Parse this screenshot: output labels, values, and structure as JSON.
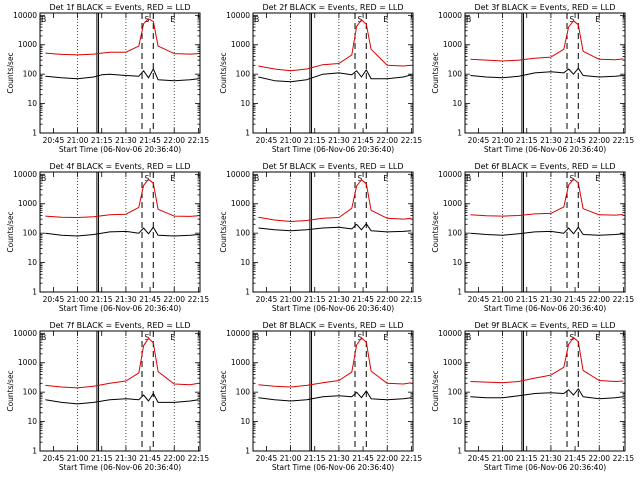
{
  "figure": {
    "background": "#ffffff",
    "events_color": "#000000",
    "lld_color": "#dd0000"
  },
  "chart_data": [
    {
      "type": "line",
      "title": "Det 1f BLACK = Events, RED = LLD",
      "xlabel": "Start Time (06-Nov-06 20:36:40)",
      "ylabel": "Counts/sec",
      "yscale": "log",
      "ylim": [
        1,
        12000
      ],
      "xlim": [
        "20:36:40",
        "22:16:00"
      ],
      "xticks": [
        "20:45",
        "21:00",
        "21:15",
        "21:30",
        "21:45",
        "22:00",
        "22:15"
      ],
      "yticks": [
        "1",
        "10",
        "100",
        "1000",
        "10000"
      ],
      "interval_labels": [
        "B",
        "S",
        "E"
      ],
      "x": [
        "20:40",
        "20:50",
        "21:00",
        "21:10",
        "21:15",
        "21:20",
        "21:30",
        "21:38",
        "21:41",
        "21:44",
        "21:47",
        "21:50",
        "22:00",
        "22:10",
        "22:15"
      ],
      "series": [
        {
          "name": "BLACK = Events",
          "values": [
            85,
            75,
            70,
            80,
            95,
            100,
            90,
            85,
            130,
            75,
            150,
            65,
            60,
            65,
            70
          ]
        },
        {
          "name": "RED = LLD",
          "values": [
            520,
            470,
            450,
            480,
            520,
            560,
            560,
            900,
            5200,
            7600,
            6200,
            900,
            500,
            480,
            500
          ]
        }
      ]
    },
    {
      "type": "line",
      "title": "Det 2f BLACK = Events, RED = LLD",
      "xlabel": "Start Time (06-Nov-06 20:36:40)",
      "ylabel": "Counts/sec",
      "yscale": "log",
      "ylim": [
        1,
        12000
      ],
      "xlim": [
        "20:36:40",
        "22:16:00"
      ],
      "xticks": [
        "20:45",
        "21:00",
        "21:15",
        "21:30",
        "21:45",
        "22:00",
        "22:15"
      ],
      "yticks": [
        "1",
        "10",
        "100",
        "1000",
        "10000"
      ],
      "interval_labels": [
        "B",
        "S",
        "E"
      ],
      "x": [
        "20:40",
        "20:50",
        "21:00",
        "21:10",
        "21:20",
        "21:30",
        "21:38",
        "21:41",
        "21:44",
        "21:47",
        "21:50",
        "22:00",
        "22:10",
        "22:15"
      ],
      "series": [
        {
          "name": "BLACK = Events",
          "values": [
            80,
            60,
            55,
            65,
            100,
            110,
            95,
            130,
            80,
            140,
            70,
            70,
            80,
            95
          ]
        },
        {
          "name": "RED = LLD",
          "values": [
            190,
            150,
            130,
            150,
            210,
            230,
            450,
            4200,
            7000,
            5000,
            700,
            200,
            190,
            200
          ]
        }
      ]
    },
    {
      "type": "line",
      "title": "Det 3f BLACK = Events, RED = LLD",
      "xlabel": "Start Time (06-Nov-06 20:36:40)",
      "ylabel": "Counts/sec",
      "yscale": "log",
      "ylim": [
        1,
        12000
      ],
      "xlim": [
        "20:36:40",
        "22:16:00"
      ],
      "xticks": [
        "20:45",
        "21:00",
        "21:15",
        "21:30",
        "21:45",
        "22:00",
        "22:15"
      ],
      "yticks": [
        "1",
        "10",
        "100",
        "1000",
        "10000"
      ],
      "interval_labels": [
        "B",
        "S",
        "E"
      ],
      "x": [
        "20:40",
        "20:50",
        "21:00",
        "21:10",
        "21:20",
        "21:30",
        "21:38",
        "21:41",
        "21:44",
        "21:47",
        "21:50",
        "22:00",
        "22:10",
        "22:15"
      ],
      "series": [
        {
          "name": "BLACK = Events",
          "values": [
            90,
            80,
            75,
            85,
            110,
            120,
            110,
            150,
            100,
            160,
            90,
            80,
            85,
            90
          ]
        },
        {
          "name": "RED = LLD",
          "values": [
            320,
            300,
            280,
            300,
            350,
            380,
            700,
            4000,
            6500,
            4800,
            600,
            320,
            310,
            330
          ]
        }
      ]
    },
    {
      "type": "line",
      "title": "Det 4f BLACK = Events, RED = LLD",
      "xlabel": "Start Time (06-Nov-06 20:36:40)",
      "ylabel": "Counts/sec",
      "yscale": "log",
      "ylim": [
        1,
        12000
      ],
      "xlim": [
        "20:36:40",
        "22:16:00"
      ],
      "xticks": [
        "20:45",
        "21:00",
        "21:15",
        "21:30",
        "21:45",
        "22:00",
        "22:15"
      ],
      "yticks": [
        "1",
        "10",
        "100",
        "1000",
        "10000"
      ],
      "interval_labels": [
        "B",
        "S",
        "E"
      ],
      "x": [
        "20:40",
        "20:50",
        "21:00",
        "21:10",
        "21:20",
        "21:30",
        "21:38",
        "21:41",
        "21:44",
        "21:47",
        "21:50",
        "22:00",
        "22:10",
        "22:15"
      ],
      "series": [
        {
          "name": "BLACK = Events",
          "values": [
            100,
            85,
            80,
            90,
            110,
            115,
            100,
            150,
            95,
            160,
            85,
            80,
            85,
            90
          ]
        },
        {
          "name": "RED = LLD",
          "values": [
            380,
            350,
            340,
            360,
            420,
            440,
            750,
            4200,
            6800,
            5000,
            650,
            380,
            370,
            390
          ]
        }
      ]
    },
    {
      "type": "line",
      "title": "Det 5f BLACK = Events, RED = LLD",
      "xlabel": "Start Time (06-Nov-06 20:36:40)",
      "ylabel": "Counts/sec",
      "yscale": "log",
      "ylim": [
        1,
        12000
      ],
      "xlim": [
        "20:36:40",
        "22:16:00"
      ],
      "xticks": [
        "20:45",
        "21:00",
        "21:15",
        "21:30",
        "21:45",
        "22:00",
        "22:15"
      ],
      "yticks": [
        "1",
        "10",
        "100",
        "1000",
        "10000"
      ],
      "interval_labels": [
        "B",
        "S",
        "E"
      ],
      "x": [
        "20:40",
        "20:50",
        "21:00",
        "21:10",
        "21:20",
        "21:30",
        "21:38",
        "21:41",
        "21:44",
        "21:47",
        "21:50",
        "22:00",
        "22:10",
        "22:15"
      ],
      "series": [
        {
          "name": "BLACK = Events",
          "values": [
            150,
            130,
            120,
            130,
            150,
            160,
            140,
            200,
            130,
            210,
            120,
            110,
            115,
            120
          ]
        },
        {
          "name": "RED = LLD",
          "values": [
            350,
            280,
            250,
            270,
            320,
            340,
            700,
            4000,
            6500,
            4800,
            600,
            320,
            300,
            320
          ]
        }
      ]
    },
    {
      "type": "line",
      "title": "Det 6f BLACK = Events, RED = LLD",
      "xlabel": "Start Time (06-Nov-06 20:36:40)",
      "ylabel": "Counts/sec",
      "yscale": "log",
      "ylim": [
        1,
        12000
      ],
      "xlim": [
        "20:36:40",
        "22:16:00"
      ],
      "xticks": [
        "20:45",
        "21:00",
        "21:15",
        "21:30",
        "21:45",
        "22:00",
        "22:15"
      ],
      "yticks": [
        "1",
        "10",
        "100",
        "1000",
        "10000"
      ],
      "interval_labels": [
        "B",
        "S",
        "E"
      ],
      "x": [
        "20:40",
        "20:50",
        "21:00",
        "21:10",
        "21:20",
        "21:30",
        "21:38",
        "21:41",
        "21:44",
        "21:47",
        "21:50",
        "22:00",
        "22:10",
        "22:15"
      ],
      "series": [
        {
          "name": "BLACK = Events",
          "values": [
            100,
            90,
            85,
            95,
            110,
            115,
            100,
            150,
            95,
            160,
            90,
            85,
            90,
            95
          ]
        },
        {
          "name": "RED = LLD",
          "values": [
            420,
            390,
            380,
            400,
            450,
            470,
            780,
            4300,
            7000,
            5100,
            680,
            420,
            410,
            430
          ]
        }
      ]
    },
    {
      "type": "line",
      "title": "Det 7f BLACK = Events, RED = LLD",
      "xlabel": "Start Time (06-Nov-06 20:36:40)",
      "ylabel": "Counts/sec",
      "yscale": "log",
      "ylim": [
        1,
        12000
      ],
      "xlim": [
        "20:36:40",
        "22:16:00"
      ],
      "xticks": [
        "20:45",
        "21:00",
        "21:15",
        "21:30",
        "21:45",
        "22:00",
        "22:15"
      ],
      "yticks": [
        "1",
        "10",
        "100",
        "1000",
        "10000"
      ],
      "interval_labels": [
        "B",
        "S",
        "E"
      ],
      "x": [
        "20:40",
        "20:50",
        "21:00",
        "21:10",
        "21:20",
        "21:30",
        "21:38",
        "21:41",
        "21:44",
        "21:47",
        "21:50",
        "22:00",
        "22:10",
        "22:15"
      ],
      "series": [
        {
          "name": "BLACK = Events",
          "values": [
            55,
            45,
            40,
            45,
            55,
            60,
            55,
            80,
            50,
            90,
            45,
            45,
            50,
            55
          ]
        },
        {
          "name": "RED = LLD",
          "values": [
            170,
            150,
            140,
            160,
            200,
            240,
            450,
            3800,
            6800,
            4800,
            500,
            190,
            180,
            200
          ]
        }
      ]
    },
    {
      "type": "line",
      "title": "Det 8f BLACK = Events, RED = LLD",
      "xlabel": "Start Time (06-Nov-06 20:36:40)",
      "ylabel": "Counts/sec",
      "yscale": "log",
      "ylim": [
        1,
        12000
      ],
      "xlim": [
        "20:36:40",
        "22:16:00"
      ],
      "xticks": [
        "20:45",
        "21:00",
        "21:15",
        "21:30",
        "21:45",
        "22:00",
        "22:15"
      ],
      "yticks": [
        "1",
        "10",
        "100",
        "1000",
        "10000"
      ],
      "interval_labels": [
        "B",
        "S",
        "E"
      ],
      "x": [
        "20:40",
        "20:50",
        "21:00",
        "21:10",
        "21:20",
        "21:30",
        "21:38",
        "21:41",
        "21:44",
        "21:47",
        "21:50",
        "22:00",
        "22:10",
        "22:15"
      ],
      "series": [
        {
          "name": "BLACK = Events",
          "values": [
            65,
            55,
            50,
            55,
            70,
            75,
            70,
            100,
            65,
            110,
            60,
            55,
            60,
            65
          ]
        },
        {
          "name": "RED = LLD",
          "values": [
            180,
            160,
            150,
            170,
            210,
            250,
            480,
            4000,
            7000,
            5000,
            520,
            200,
            190,
            210
          ]
        }
      ]
    },
    {
      "type": "line",
      "title": "Det 9f BLACK = Events, RED = LLD",
      "xlabel": "Start Time (06-Nov-06 20:36:40)",
      "ylabel": "Counts/sec",
      "yscale": "log",
      "ylim": [
        1,
        12000
      ],
      "xlim": [
        "20:36:40",
        "22:16:00"
      ],
      "xticks": [
        "20:45",
        "21:00",
        "21:15",
        "21:30",
        "21:45",
        "22:00",
        "22:15"
      ],
      "yticks": [
        "1",
        "10",
        "100",
        "1000",
        "10000"
      ],
      "interval_labels": [
        "B",
        "S",
        "E"
      ],
      "x": [
        "20:40",
        "20:50",
        "21:00",
        "21:10",
        "21:20",
        "21:30",
        "21:38",
        "21:41",
        "21:44",
        "21:47",
        "21:50",
        "22:00",
        "22:10",
        "22:15"
      ],
      "series": [
        {
          "name": "BLACK = Events",
          "values": [
            70,
            65,
            65,
            75,
            90,
            95,
            90,
            120,
            80,
            130,
            70,
            60,
            65,
            70
          ]
        },
        {
          "name": "RED = LLD",
          "values": [
            230,
            220,
            210,
            230,
            300,
            380,
            700,
            4200,
            7200,
            5200,
            550,
            250,
            230,
            240
          ]
        }
      ]
    }
  ]
}
